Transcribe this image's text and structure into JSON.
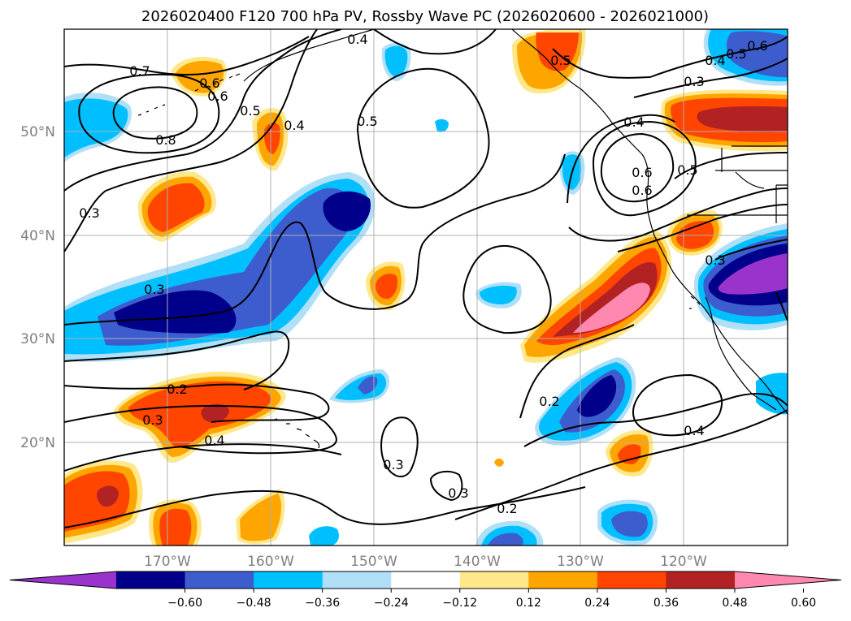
{
  "title": "2026020400 F120 700 hPa PV, Rossby Wave PC (2026020600 - 2026021000)",
  "lat_labels": [
    "50°N",
    "40°N",
    "30°N",
    "20°N"
  ],
  "lon_labels": [
    "170°W",
    "160°W",
    "150°W",
    "140°W",
    "130°W",
    "120°W"
  ],
  "colorbar": {
    "ticks": [
      "−0.60",
      "−0.48",
      "−0.36",
      "−0.24",
      "−0.12",
      "0.12",
      "0.24",
      "0.36",
      "0.48",
      "0.60"
    ],
    "colors": [
      "#9933cc",
      "#00008b",
      "#3d5cce",
      "#00bfff",
      "#b0e0f8",
      "#ffffff",
      "#ffe88a",
      "#ffa500",
      "#ff4500",
      "#b22222",
      "#ff88b0"
    ]
  },
  "contour_labels": [
    "0.7",
    "0.6",
    "0.6",
    "0.5",
    "0.8",
    "0.4",
    "0.5",
    "0.3",
    "0.3",
    "0.2",
    "0.3",
    "0.4",
    "0.3",
    "0.3",
    "0.2",
    "0.2",
    "0.4",
    "0.6",
    "0.4",
    "0.6",
    "0.5",
    "0.4",
    "0.5",
    "0.3",
    "0.3",
    "0.4",
    "0.6",
    "0.5"
  ],
  "map": {
    "lat_range": [
      10,
      60
    ],
    "lon_range": [
      -180,
      -110
    ],
    "gridlines_lat": [
      50,
      40,
      30,
      20
    ],
    "gridlines_lon": [
      -170,
      -160,
      -150,
      -140,
      -130,
      -120
    ]
  }
}
